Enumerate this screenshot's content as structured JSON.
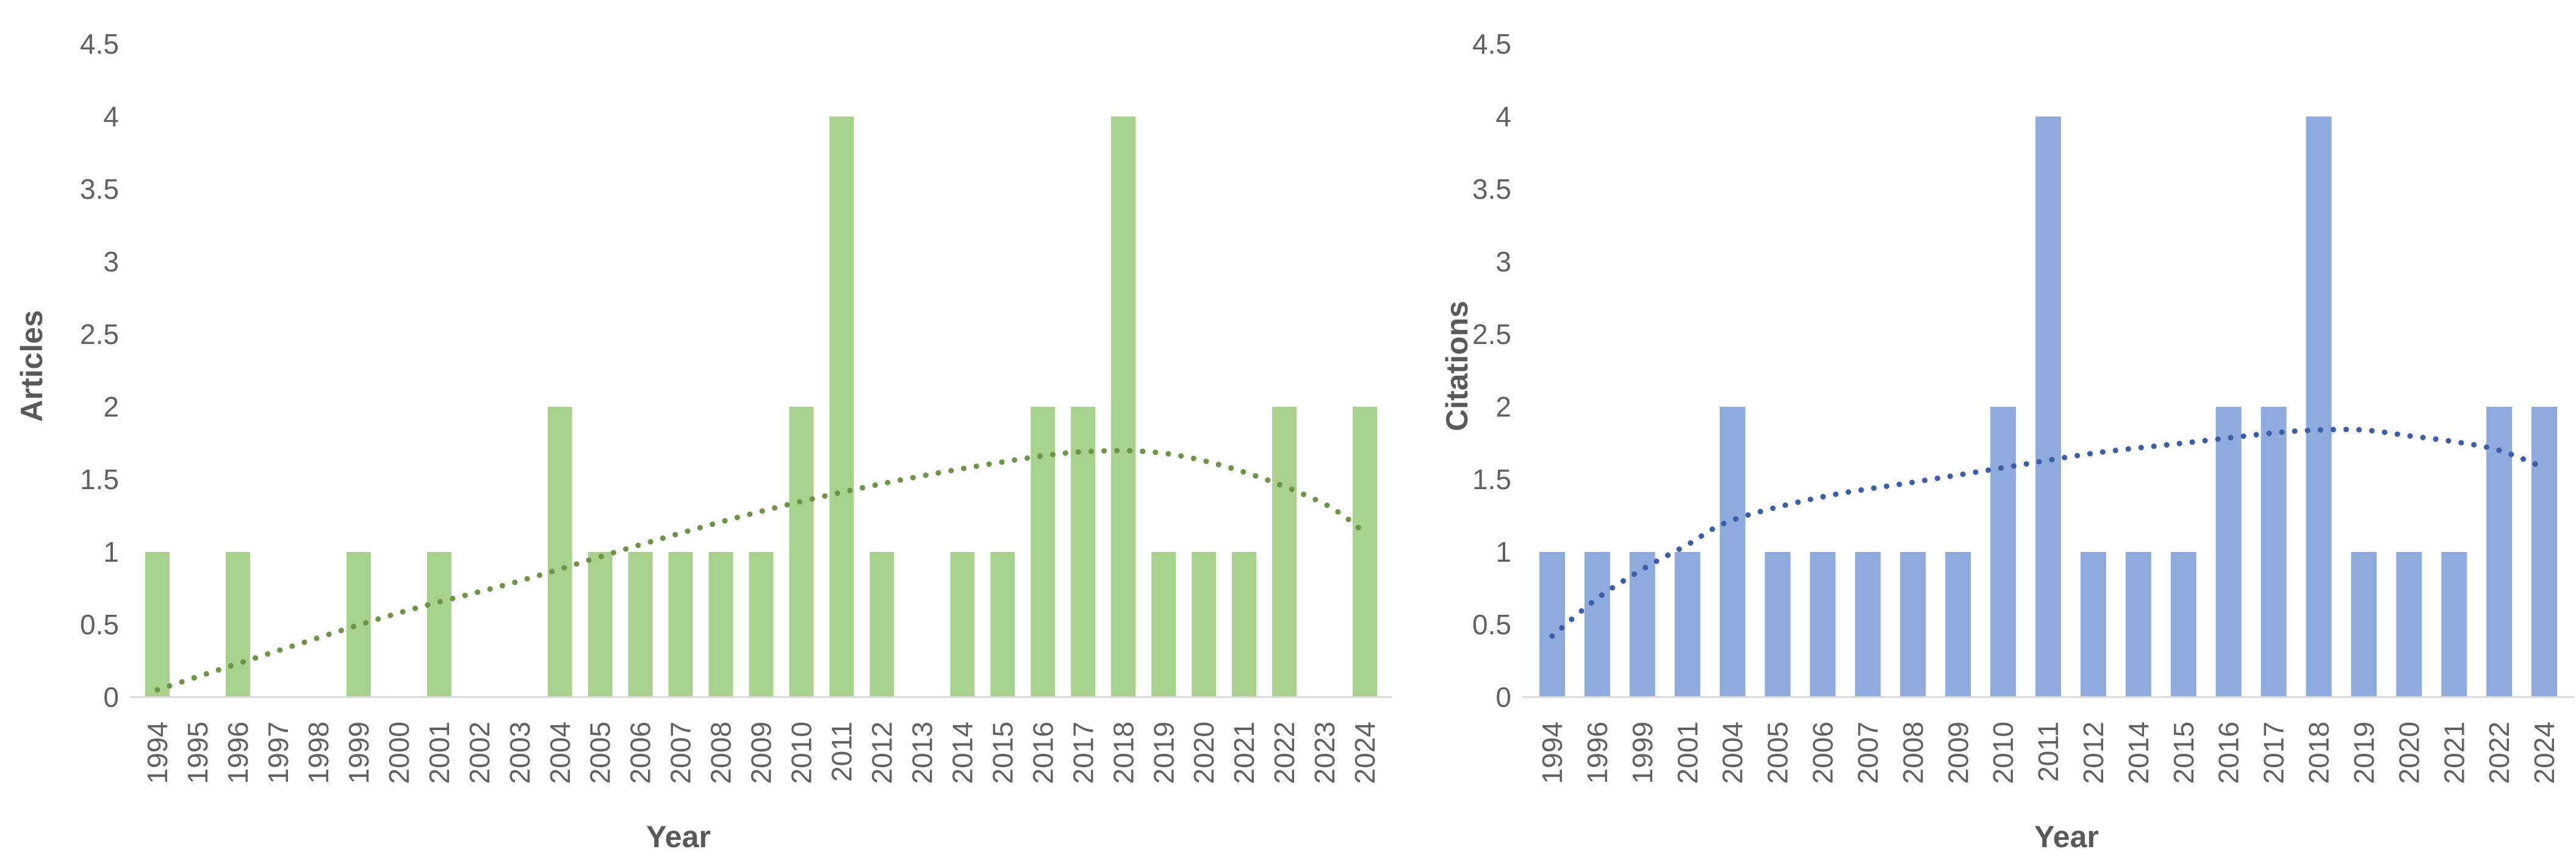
{
  "chart_data": [
    {
      "type": "bar",
      "name": "articles-by-year",
      "ylabel": "Articles",
      "xlabel": "Year",
      "categories": [
        "1994",
        "1995",
        "1996",
        "1997",
        "1998",
        "1999",
        "2000",
        "2001",
        "2002",
        "2003",
        "2004",
        "2005",
        "2006",
        "2007",
        "2008",
        "2009",
        "2010",
        "2011",
        "2012",
        "2013",
        "2014",
        "2015",
        "2016",
        "2017",
        "2018",
        "2019",
        "2020",
        "2021",
        "2022",
        "2023",
        "2024"
      ],
      "values": [
        1,
        0,
        1,
        0,
        0,
        1,
        0,
        1,
        0,
        0,
        2,
        1,
        1,
        1,
        1,
        1,
        2,
        4,
        1,
        0,
        1,
        1,
        2,
        2,
        4,
        1,
        1,
        1,
        2,
        0,
        2
      ],
      "y_ticks": [
        0,
        0.5,
        1,
        1.5,
        2,
        2.5,
        3,
        3.5,
        4,
        4.5
      ],
      "ylim": [
        0,
        4.5
      ],
      "grid": false,
      "legend": "none",
      "bar_color": "#A9D18E",
      "trend_color": "#6E9447",
      "axis_line_color": "#D9D9D9",
      "trendline": {
        "style": "dotted",
        "points": [
          {
            "i": 0,
            "v": 0.05
          },
          {
            "i": 3,
            "v": 0.32
          },
          {
            "i": 6,
            "v": 0.58
          },
          {
            "i": 9,
            "v": 0.8
          },
          {
            "i": 12,
            "v": 1.05
          },
          {
            "i": 15,
            "v": 1.28
          },
          {
            "i": 18,
            "v": 1.47
          },
          {
            "i": 21,
            "v": 1.62
          },
          {
            "i": 23,
            "v": 1.69
          },
          {
            "i": 25,
            "v": 1.68
          },
          {
            "i": 27,
            "v": 1.55
          },
          {
            "i": 29,
            "v": 1.33
          },
          {
            "i": 30,
            "v": 1.13
          }
        ]
      }
    },
    {
      "type": "bar",
      "name": "citations-by-year",
      "ylabel": "Citations",
      "xlabel": "Year",
      "categories": [
        "1994",
        "1996",
        "1999",
        "2001",
        "2004",
        "2005",
        "2006",
        "2007",
        "2008",
        "2009",
        "2010",
        "2011",
        "2012",
        "2014",
        "2015",
        "2016",
        "2017",
        "2018",
        "2019",
        "2020",
        "2021",
        "2022",
        "2024"
      ],
      "values": [
        1,
        1,
        1,
        1,
        2,
        1,
        1,
        1,
        1,
        1,
        2,
        4,
        1,
        1,
        1,
        2,
        2,
        4,
        1,
        1,
        1,
        2,
        2
      ],
      "y_ticks": [
        0,
        0.5,
        1,
        1.5,
        2,
        2.5,
        3,
        3.5,
        4,
        4.5
      ],
      "ylim": [
        0,
        4.5
      ],
      "grid": false,
      "legend": "none",
      "bar_color": "#8FAADC",
      "trend_color": "#3B5EA9",
      "axis_line_color": "#D9D9D9",
      "trendline": {
        "style": "dotted",
        "points": [
          {
            "i": 0,
            "v": 0.42
          },
          {
            "i": 1,
            "v": 0.68
          },
          {
            "i": 2,
            "v": 0.88
          },
          {
            "i": 3,
            "v": 1.05
          },
          {
            "i": 4,
            "v": 1.22
          },
          {
            "i": 6,
            "v": 1.38
          },
          {
            "i": 8,
            "v": 1.48
          },
          {
            "i": 10,
            "v": 1.58
          },
          {
            "i": 12,
            "v": 1.68
          },
          {
            "i": 14,
            "v": 1.75
          },
          {
            "i": 16,
            "v": 1.82
          },
          {
            "i": 17,
            "v": 1.84
          },
          {
            "i": 18,
            "v": 1.84
          },
          {
            "i": 19,
            "v": 1.8
          },
          {
            "i": 20,
            "v": 1.76
          },
          {
            "i": 21,
            "v": 1.7
          },
          {
            "i": 22,
            "v": 1.58
          }
        ]
      }
    }
  ]
}
